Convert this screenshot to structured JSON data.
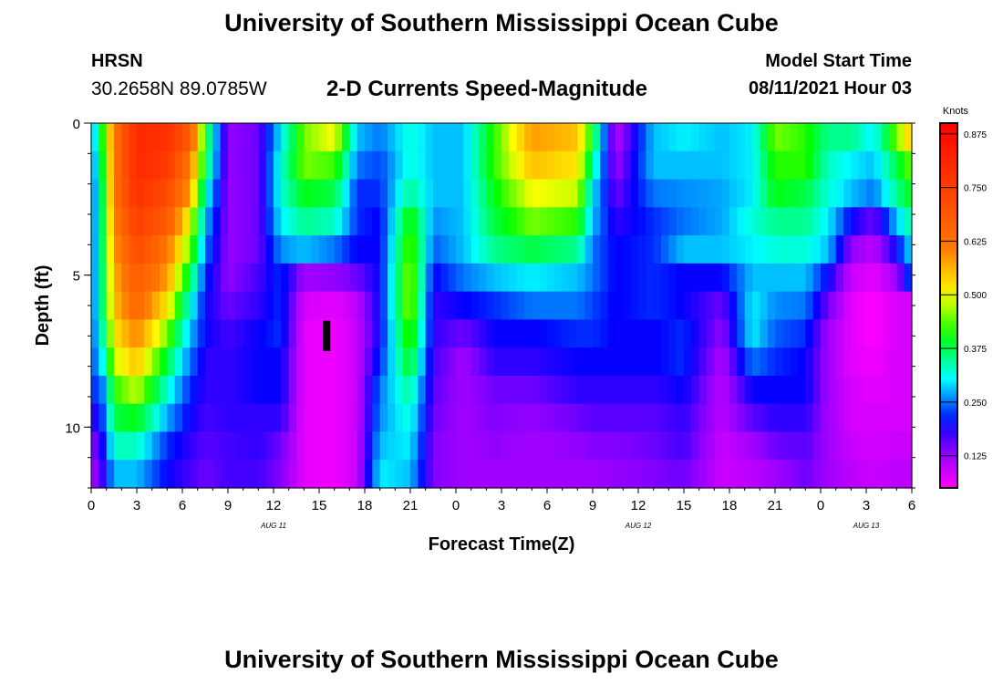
{
  "header": {
    "title": "University of Southern Mississippi Ocean Cube",
    "station": "HRSN",
    "coords": "30.2658N  89.0785W",
    "chart_title": "2-D Currents Speed-Magnitude",
    "model_start_label": "Model Start Time",
    "model_start_time": "08/11/2021 Hour 03"
  },
  "footer": {
    "title": "University of Southern Mississippi Ocean Cube"
  },
  "chart_data": {
    "type": "heatmap",
    "title": "2-D Currents Speed-Magnitude",
    "xlabel": "Forecast Time(Z)",
    "ylabel": "Depth (ft)",
    "xlim": [
      0,
      54
    ],
    "ylim": [
      0,
      12
    ],
    "x_tick_labels": [
      "0",
      "3",
      "6",
      "9",
      "12",
      "15",
      "18",
      "21",
      "0",
      "3",
      "6",
      "9",
      "12",
      "15",
      "18",
      "21",
      "0",
      "3",
      "6"
    ],
    "y_ticks": [
      0,
      5,
      10
    ],
    "date_labels": [
      {
        "hour": 12,
        "label": "AUG  11"
      },
      {
        "hour": 36,
        "label": "AUG  12"
      },
      {
        "hour": 51,
        "label": "AUG  13"
      }
    ],
    "colorbar": {
      "unit": "Knots",
      "min": 0.05,
      "max": 0.9,
      "ticks": [
        0.125,
        0.25,
        0.375,
        0.5,
        0.625,
        0.75,
        0.875
      ],
      "tick_labels": [
        "0.125",
        "0.250",
        "0.375",
        "0.500",
        "0.625",
        "0.750",
        "0.875"
      ]
    },
    "marker": {
      "hour": 15.5,
      "depth_top": 6.5,
      "depth_bottom": 7.5
    },
    "depth_profiles": [
      {
        "x": 0,
        "v": [
          0.25,
          0.25,
          0.25,
          0.25,
          0.25,
          0.25,
          0.25,
          0.25,
          0.25,
          0.25,
          0.2,
          0.15,
          0.12
        ]
      },
      {
        "x": 0.5,
        "v": [
          0.35,
          0.32,
          0.3,
          0.3,
          0.3,
          0.3,
          0.3,
          0.28,
          0.25,
          0.2,
          0.18,
          0.15,
          0.14
        ]
      },
      {
        "x": 1.5,
        "v": [
          0.62,
          0.62,
          0.62,
          0.6,
          0.58,
          0.56,
          0.55,
          0.52,
          0.48,
          0.42,
          0.38,
          0.33,
          0.28
        ]
      },
      {
        "x": 3,
        "v": [
          0.8,
          0.8,
          0.78,
          0.75,
          0.72,
          0.68,
          0.65,
          0.6,
          0.55,
          0.48,
          0.4,
          0.33,
          0.28
        ]
      },
      {
        "x": 5,
        "v": [
          0.78,
          0.76,
          0.72,
          0.68,
          0.62,
          0.58,
          0.52,
          0.45,
          0.38,
          0.32,
          0.27,
          0.22,
          0.2
        ]
      },
      {
        "x": 6.5,
        "v": [
          0.68,
          0.62,
          0.58,
          0.5,
          0.45,
          0.38,
          0.32,
          0.28,
          0.25,
          0.22,
          0.2,
          0.18,
          0.17
        ]
      },
      {
        "x": 7.5,
        "v": [
          0.4,
          0.38,
          0.32,
          0.28,
          0.25,
          0.22,
          0.2,
          0.2,
          0.18,
          0.18,
          0.17,
          0.16,
          0.15
        ]
      },
      {
        "x": 9,
        "v": [
          0.13,
          0.13,
          0.13,
          0.13,
          0.13,
          0.13,
          0.15,
          0.17,
          0.18,
          0.18,
          0.18,
          0.17,
          0.17
        ]
      },
      {
        "x": 11,
        "v": [
          0.15,
          0.15,
          0.15,
          0.15,
          0.15,
          0.17,
          0.18,
          0.2,
          0.2,
          0.2,
          0.18,
          0.18,
          0.17
        ]
      },
      {
        "x": 12.5,
        "v": [
          0.3,
          0.32,
          0.32,
          0.3,
          0.26,
          0.22,
          0.22,
          0.22,
          0.2,
          0.2,
          0.18,
          0.15,
          0.14
        ]
      },
      {
        "x": 14,
        "v": [
          0.45,
          0.45,
          0.4,
          0.35,
          0.28,
          0.12,
          0.08,
          0.07,
          0.07,
          0.07,
          0.07,
          0.07,
          0.07
        ]
      },
      {
        "x": 16,
        "v": [
          0.5,
          0.43,
          0.38,
          0.33,
          0.25,
          0.13,
          0.07,
          0.06,
          0.06,
          0.06,
          0.06,
          0.06,
          0.06
        ]
      },
      {
        "x": 17.5,
        "v": [
          0.28,
          0.25,
          0.22,
          0.22,
          0.2,
          0.15,
          0.1,
          0.09,
          0.09,
          0.09,
          0.09,
          0.09,
          0.09
        ]
      },
      {
        "x": 19,
        "v": [
          0.25,
          0.23,
          0.22,
          0.2,
          0.2,
          0.2,
          0.2,
          0.2,
          0.22,
          0.25,
          0.26,
          0.28,
          0.3
        ]
      },
      {
        "x": 21,
        "v": [
          0.32,
          0.32,
          0.35,
          0.42,
          0.45,
          0.47,
          0.47,
          0.44,
          0.4,
          0.35,
          0.32,
          0.3,
          0.28
        ]
      },
      {
        "x": 22.5,
        "v": [
          0.28,
          0.28,
          0.28,
          0.26,
          0.24,
          0.2,
          0.18,
          0.18,
          0.17,
          0.16,
          0.15,
          0.14,
          0.14
        ]
      },
      {
        "x": 24.5,
        "v": [
          0.28,
          0.28,
          0.28,
          0.28,
          0.28,
          0.25,
          0.2,
          0.15,
          0.12,
          0.12,
          0.12,
          0.12,
          0.12
        ]
      },
      {
        "x": 26.5,
        "v": [
          0.42,
          0.42,
          0.4,
          0.38,
          0.35,
          0.28,
          0.22,
          0.2,
          0.18,
          0.15,
          0.14,
          0.13,
          0.12
        ]
      },
      {
        "x": 29,
        "v": [
          0.58,
          0.55,
          0.5,
          0.45,
          0.38,
          0.3,
          0.25,
          0.2,
          0.18,
          0.15,
          0.13,
          0.12,
          0.12
        ]
      },
      {
        "x": 32,
        "v": [
          0.55,
          0.52,
          0.48,
          0.42,
          0.35,
          0.28,
          0.25,
          0.22,
          0.2,
          0.18,
          0.15,
          0.13,
          0.12
        ]
      },
      {
        "x": 33,
        "v": [
          0.4,
          0.35,
          0.3,
          0.28,
          0.25,
          0.25,
          0.23,
          0.22,
          0.2,
          0.18,
          0.16,
          0.14,
          0.12
        ]
      },
      {
        "x": 34.5,
        "v": [
          0.1,
          0.12,
          0.15,
          0.18,
          0.2,
          0.2,
          0.2,
          0.2,
          0.2,
          0.18,
          0.16,
          0.14,
          0.13
        ]
      },
      {
        "x": 37,
        "v": [
          0.28,
          0.28,
          0.25,
          0.22,
          0.22,
          0.22,
          0.22,
          0.2,
          0.2,
          0.18,
          0.16,
          0.15,
          0.14
        ]
      },
      {
        "x": 39,
        "v": [
          0.3,
          0.28,
          0.26,
          0.25,
          0.28,
          0.2,
          0.2,
          0.22,
          0.22,
          0.2,
          0.18,
          0.17,
          0.15
        ]
      },
      {
        "x": 41.5,
        "v": [
          0.28,
          0.28,
          0.27,
          0.27,
          0.28,
          0.2,
          0.15,
          0.13,
          0.11,
          0.1,
          0.1,
          0.09,
          0.09
        ]
      },
      {
        "x": 43.5,
        "v": [
          0.3,
          0.3,
          0.3,
          0.32,
          0.3,
          0.28,
          0.3,
          0.3,
          0.25,
          0.2,
          0.16,
          0.12,
          0.1
        ]
      },
      {
        "x": 45,
        "v": [
          0.45,
          0.42,
          0.4,
          0.35,
          0.32,
          0.28,
          0.26,
          0.24,
          0.22,
          0.2,
          0.18,
          0.15,
          0.12
        ]
      },
      {
        "x": 47,
        "v": [
          0.42,
          0.42,
          0.38,
          0.35,
          0.32,
          0.28,
          0.25,
          0.22,
          0.2,
          0.2,
          0.18,
          0.16,
          0.15
        ]
      },
      {
        "x": 48.5,
        "v": [
          0.35,
          0.33,
          0.32,
          0.3,
          0.28,
          0.2,
          0.15,
          0.12,
          0.12,
          0.12,
          0.12,
          0.12,
          0.12
        ]
      },
      {
        "x": 50,
        "v": [
          0.35,
          0.3,
          0.28,
          0.2,
          0.13,
          0.09,
          0.07,
          0.07,
          0.07,
          0.08,
          0.08,
          0.09,
          0.1
        ]
      },
      {
        "x": 51.5,
        "v": [
          0.3,
          0.28,
          0.25,
          0.15,
          0.1,
          0.07,
          0.05,
          0.05,
          0.06,
          0.07,
          0.08,
          0.08,
          0.09
        ]
      },
      {
        "x": 53,
        "v": [
          0.45,
          0.38,
          0.35,
          0.28,
          0.2,
          0.12,
          0.08,
          0.08,
          0.08,
          0.08,
          0.08,
          0.09,
          0.1
        ]
      },
      {
        "x": 54,
        "v": [
          0.55,
          0.45,
          0.4,
          0.35,
          0.3,
          0.25,
          0.08,
          0.08,
          0.08,
          0.08,
          0.08,
          0.09,
          0.1
        ]
      }
    ]
  }
}
